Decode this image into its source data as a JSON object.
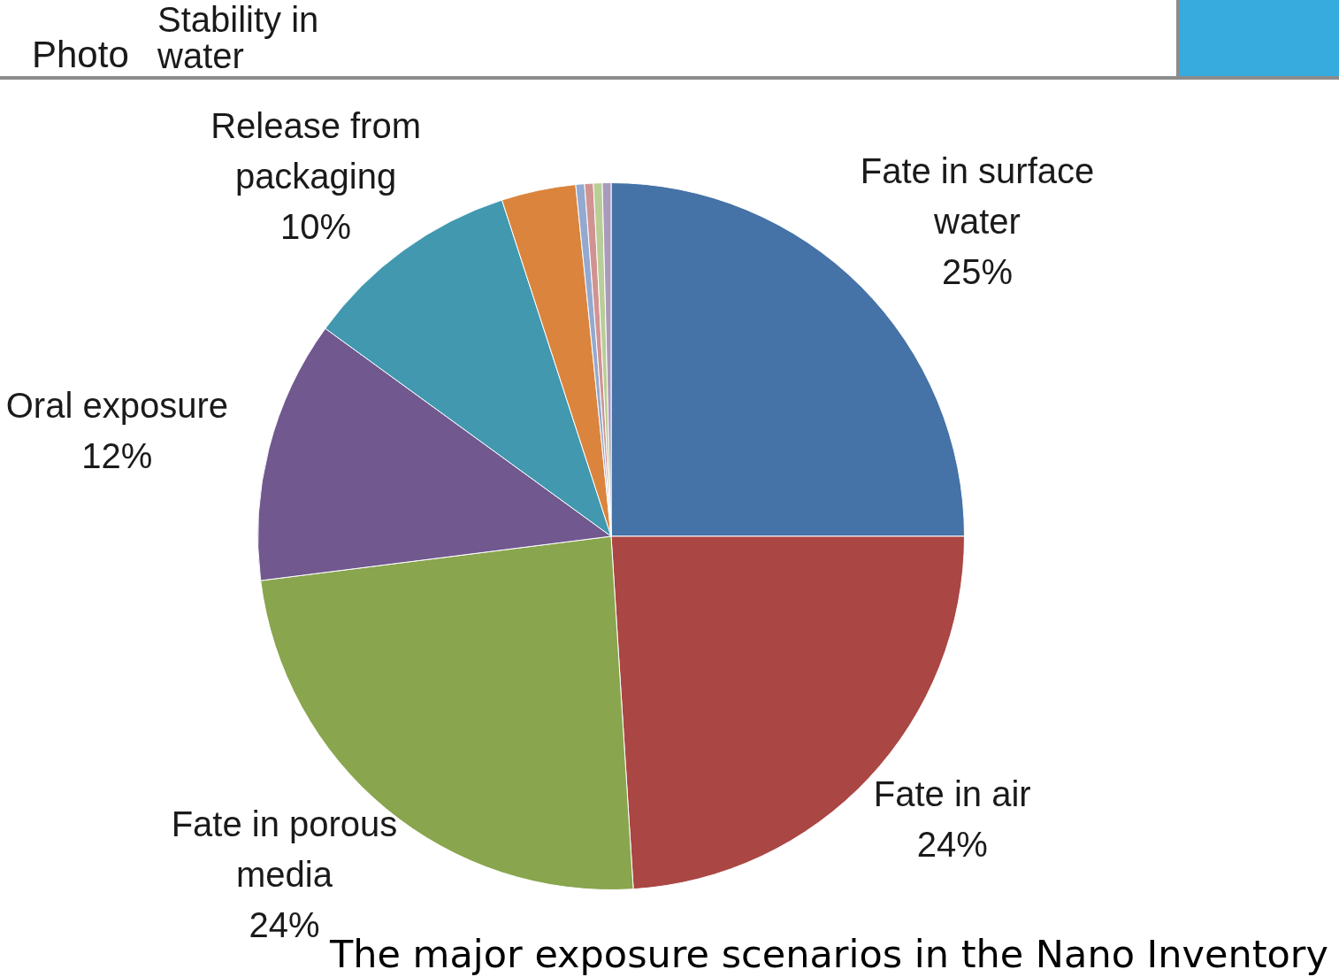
{
  "chart_data": {
    "type": "pie",
    "categories": [
      "Fate in surface water",
      "Fate in air",
      "Fate in porous media",
      "Oral exposure",
      "Release from packaging",
      null,
      null,
      null,
      null,
      null
    ],
    "values": [
      25,
      24,
      24,
      12,
      10,
      3.4,
      0.4,
      0.4,
      0.4,
      0.4
    ],
    "colors": [
      "#4572a7",
      "#aa4643",
      "#89a54e",
      "#71588f",
      "#4198af",
      "#db843d",
      "#93a9cf",
      "#d19392",
      "#b9cd96",
      "#a99bbd"
    ],
    "value_labels": [
      "25%",
      "24%",
      "24%",
      "12%",
      "10%",
      null,
      null,
      null,
      null,
      null
    ],
    "annotations": [
      "Photo",
      "Stability in water",
      "The major exposure scenarios in the Nano Inventory"
    ]
  }
}
